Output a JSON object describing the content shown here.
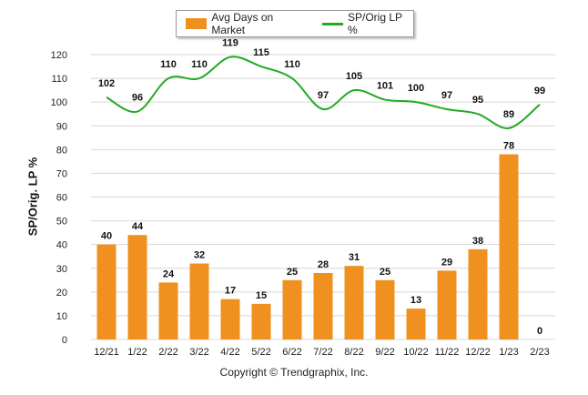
{
  "chart_data": {
    "type": "bar",
    "categories": [
      "12/21",
      "1/22",
      "2/22",
      "3/22",
      "4/22",
      "5/22",
      "6/22",
      "7/22",
      "8/22",
      "9/22",
      "10/22",
      "11/22",
      "12/22",
      "1/23",
      "2/23"
    ],
    "series": [
      {
        "name": "Avg Days on Market",
        "type": "bar",
        "color": "#f0901e",
        "values": [
          40,
          44,
          24,
          32,
          17,
          15,
          25,
          28,
          31,
          25,
          13,
          29,
          38,
          78,
          0
        ]
      },
      {
        "name": "SP/Orig LP %",
        "type": "line",
        "color": "#22aa22",
        "values": [
          102,
          96,
          110,
          110,
          119,
          115,
          110,
          97,
          105,
          101,
          100,
          97,
          95,
          89,
          99
        ]
      }
    ],
    "ylabel": "SP/Orig. LP %",
    "ylim": [
      0,
      120
    ],
    "yticks": [
      0,
      10,
      20,
      30,
      40,
      50,
      60,
      70,
      80,
      90,
      100,
      110,
      120
    ],
    "grid": true,
    "legend_position": "top"
  },
  "footer": {
    "copyright": "Copyright © Trendgraphix, Inc."
  }
}
